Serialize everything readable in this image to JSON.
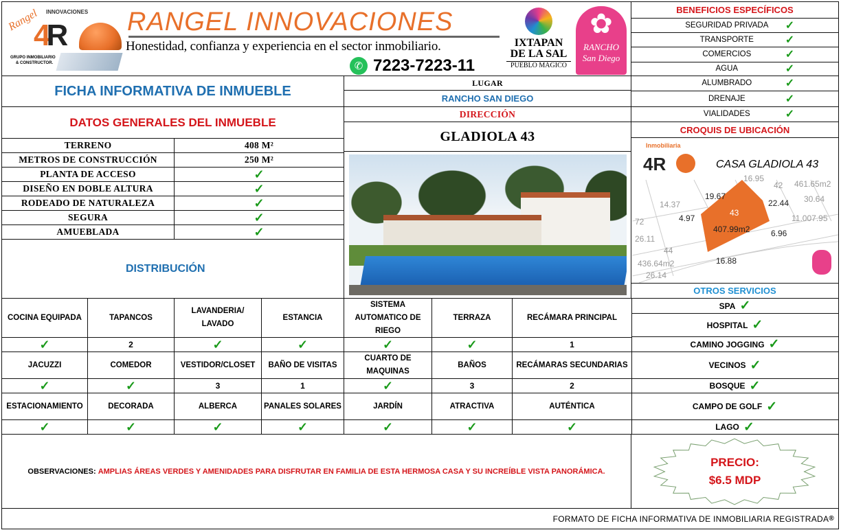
{
  "header": {
    "brand": "RANGEL INNOVACIONES",
    "slogan": "Honestidad, confianza y experiencia en el sector inmobiliario.",
    "phone": "7223-7223-11",
    "logo_text": [
      "Rangel",
      "INNOVACIONES",
      "GRUPO INMOBILIARIO",
      "& CONSTRUCTOR."
    ],
    "ixtapan_logo": [
      "IXTAPAN",
      "DE LA SAL",
      "PUEBLO MÁGICO"
    ],
    "rancho_logo": [
      "RANCHO",
      "San Diego"
    ]
  },
  "ficha_title": "FICHA INFORMATIVA DE INMUEBLE",
  "datos_title": "DATOS GENERALES DEL INMUEBLE",
  "datos": [
    {
      "label": "TERRENO",
      "value": "408 M²"
    },
    {
      "label": "METROS DE CONSTRUCCIÓN",
      "value": "250 M²"
    },
    {
      "label": "PLANTA DE ACCESO",
      "value": "✓"
    },
    {
      "label": "DISEÑO EN DOBLE ALTURA",
      "value": "✓"
    },
    {
      "label": "RODEADO DE NATURALEZA",
      "value": "✓"
    },
    {
      "label": "SEGURA",
      "value": "✓"
    },
    {
      "label": "AMUEBLADA",
      "value": "✓"
    }
  ],
  "distribucion_title": "DISTRIBUCIÓN",
  "lugar_label": "LUGAR",
  "lugar": "RANCHO SAN DIEGO",
  "direccion_label": "DIRECCIÓN",
  "direccion": "GLADIOLA 43",
  "beneficios_title": "BENEFICIOS ESPECÍFICOS",
  "beneficios": [
    "SEGURIDAD PRIVADA",
    "TRANSPORTE",
    "COMERCIOS",
    "AGUA",
    "ALUMBRADO",
    "DRENAJE",
    "VIALIDADES"
  ],
  "croquis_title": "CROQUIS DE UBICACIÓN",
  "croquis": {
    "title": "CASA GLADIOLA 43",
    "lot": "43",
    "area": "407.99m2",
    "dims": [
      "19.67",
      "22.44",
      "4.97",
      "16.88",
      "6.96",
      "14.37",
      "16.95",
      "461.65m2",
      "30.64",
      "436.64m2",
      "26.14",
      "26.11",
      "11.007.95",
      "42",
      "44",
      "72"
    ],
    "logo_text": "Inmobiliaria"
  },
  "otros_title": "OTROS SERVICIOS",
  "otros": [
    "SPA",
    "HOSPITAL",
    "CAMINO JOGGING",
    "VECINOS",
    "BOSQUE",
    "CAMPO DE GOLF",
    "LAGO"
  ],
  "check": "✓",
  "distribucion_rows": [
    {
      "labels": [
        "COCINA EQUIPADA",
        "TAPANCOS",
        "LAVANDERIA/ LAVADO",
        "ESTANCIA",
        "SISTEMA AUTOMATICO DE RIEGO",
        "TERRAZA",
        "RECÁMARA PRINCIPAL"
      ],
      "values": [
        "✓",
        "2",
        "✓",
        "✓",
        "✓",
        "✓",
        "1"
      ]
    },
    {
      "labels": [
        "JACUZZI",
        "COMEDOR",
        "VESTIDOR/CLOSET",
        "BAÑO DE VISITAS",
        "CUARTO DE MAQUINAS",
        "BAÑOS",
        "RECÁMARAS SECUNDARIAS"
      ],
      "values": [
        "✓",
        "✓",
        "3",
        "1",
        "✓",
        "3",
        "2"
      ]
    },
    {
      "labels": [
        "ESTACIONAMIENTO",
        "DECORADA",
        "ALBERCA",
        "PANALES SOLARES",
        "JARDÍN",
        "ATRACTIVA",
        "AUTÉNTICA"
      ],
      "values": [
        "✓",
        "✓",
        "✓",
        "✓",
        "✓",
        "✓",
        "✓"
      ]
    }
  ],
  "observaciones_label": "OBSERVACIONES:",
  "observaciones": "AMPLIAS ÁREAS VERDES Y AMENIDADES PARA DISFRUTAR EN FAMILIA DE ESTA HERMOSA CASA Y SU INCREÍBLE VISTA PANORÁMICA.",
  "precio_label": "PRECIO:",
  "precio": "$6.5 MDP",
  "footer": "FORMATO DE FICHA INFORMATIVA DE INMOBILIARIA REGISTRADA",
  "footer_mark": "®",
  "colors": {
    "red": "#d4151a",
    "blue": "#1f8fd1",
    "orange": "#e8702a",
    "green": "#1a9a1a",
    "pink": "#e8408a"
  }
}
